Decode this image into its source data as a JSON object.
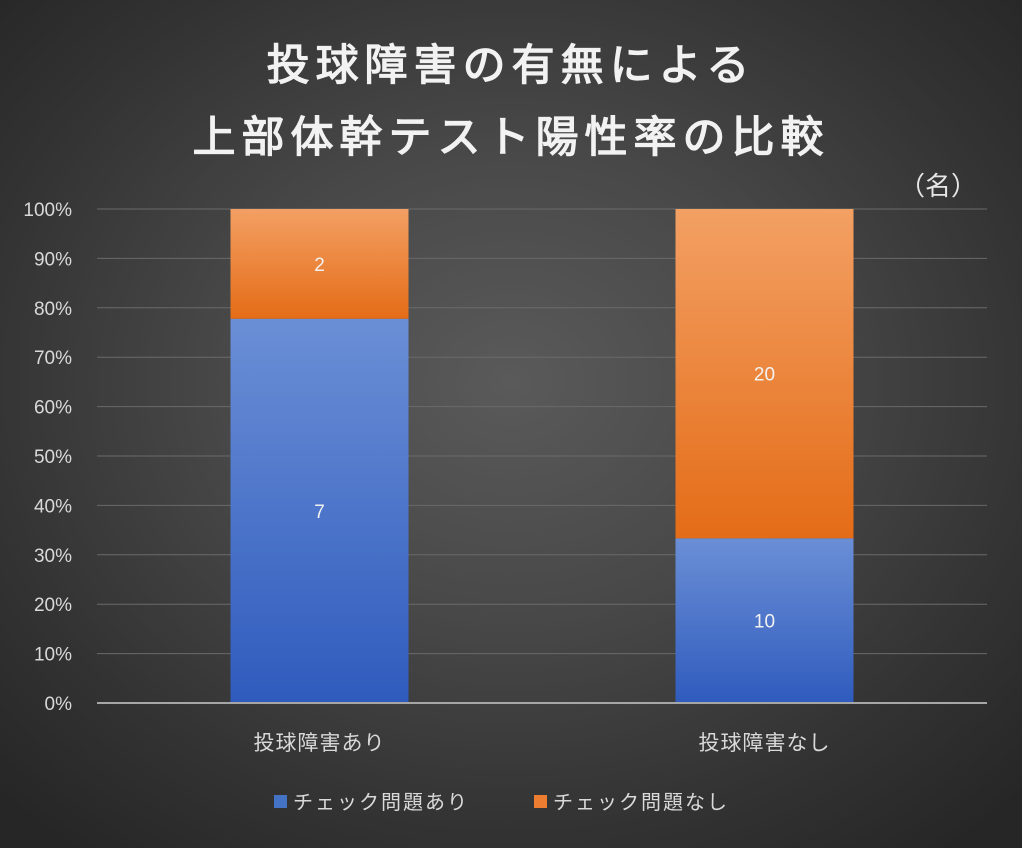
{
  "chart_data": {
    "type": "bar",
    "stacked": true,
    "normalized": true,
    "title_lines": [
      "投球障害の有無による",
      "上部体幹テスト陽性率の比較"
    ],
    "unit_label": "（名）",
    "categories": [
      "投球障害あり",
      "投球障害なし"
    ],
    "series": [
      {
        "name": "チェック問題あり",
        "values": [
          7,
          10
        ],
        "color": "#4472c4"
      },
      {
        "name": "チェック問題なし",
        "values": [
          2,
          20
        ],
        "color": "#ed7d31"
      }
    ],
    "ylim": [
      0,
      100
    ],
    "yticks": [
      "0%",
      "10%",
      "20%",
      "30%",
      "40%",
      "50%",
      "60%",
      "70%",
      "80%",
      "90%",
      "100%"
    ],
    "grid": true,
    "legend_position": "bottom"
  }
}
